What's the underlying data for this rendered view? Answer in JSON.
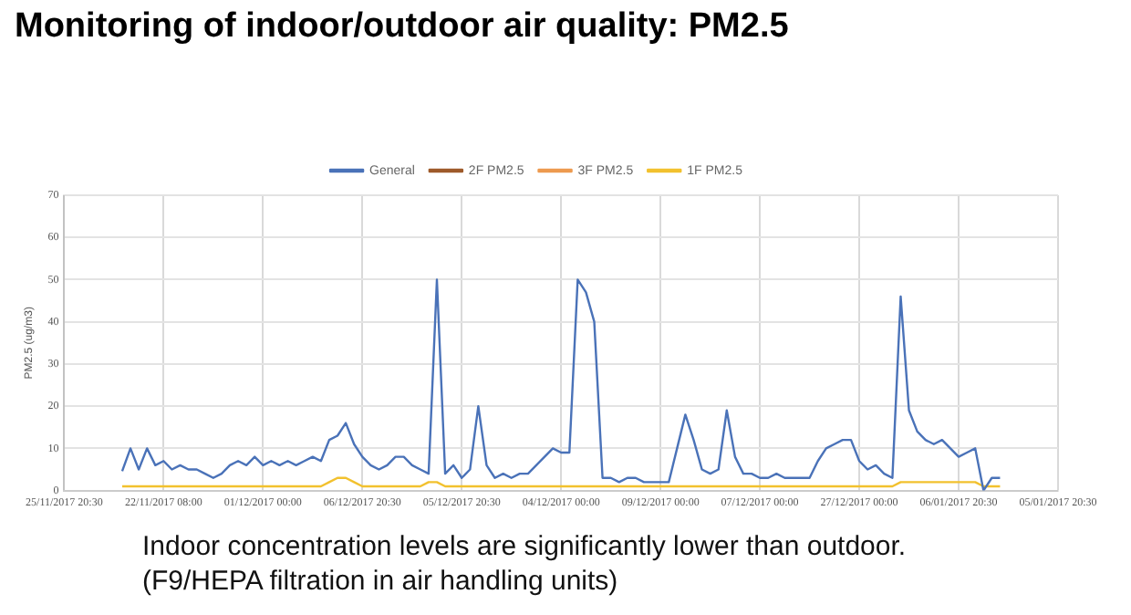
{
  "chart_data": {
    "type": "line",
    "title": "Monitoring of indoor/outdoor air quality: PM2.5",
    "ylabel": "PM2.5 (ug/m3)",
    "categories": [
      "25/11/2017 20:30",
      null,
      null,
      null,
      null,
      null,
      null,
      null,
      null,
      null,
      null,
      null,
      "22/11/2017 08:00",
      null,
      null,
      null,
      null,
      null,
      null,
      null,
      null,
      null,
      null,
      null,
      "01/12/2017 00:00",
      null,
      null,
      null,
      null,
      null,
      null,
      null,
      null,
      null,
      null,
      null,
      "06/12/2017 20:30",
      null,
      null,
      null,
      null,
      null,
      null,
      null,
      null,
      null,
      null,
      null,
      "05/12/2017 20:30",
      null,
      null,
      null,
      null,
      null,
      null,
      null,
      null,
      null,
      null,
      null,
      "04/12/2017 00:00",
      null,
      null,
      null,
      null,
      null,
      null,
      null,
      null,
      null,
      null,
      null,
      "09/12/2017 00:00",
      null,
      null,
      null,
      null,
      null,
      null,
      null,
      null,
      null,
      null,
      null,
      "07/12/2017 00:00",
      null,
      null,
      null,
      null,
      null,
      null,
      null,
      null,
      null,
      null,
      null,
      "27/12/2017 00:00",
      null,
      null,
      null,
      null,
      null,
      null,
      null,
      null,
      null,
      null,
      null,
      "06/01/2017 20:30",
      null,
      null,
      null,
      null,
      null,
      null,
      null,
      null,
      null,
      null,
      null,
      "05/01/2017 20:30"
    ],
    "series": [
      {
        "name": "General",
        "color": "#4a72b8",
        "values": [
          null,
          null,
          null,
          null,
          null,
          null,
          null,
          4.6,
          10,
          5,
          10,
          6,
          7,
          5,
          6,
          5,
          5,
          4,
          3,
          4,
          6,
          7,
          6,
          8,
          6,
          7,
          6,
          7,
          6,
          7,
          8,
          7,
          12,
          13,
          16,
          11,
          8,
          6,
          5,
          6,
          8,
          8,
          6,
          5,
          4,
          50,
          4,
          6,
          3,
          5,
          20,
          6,
          3,
          4,
          3,
          4,
          4,
          6,
          8,
          10,
          9,
          9,
          50,
          47,
          40,
          3,
          3,
          2,
          3,
          3,
          2,
          2,
          2,
          2,
          10,
          18,
          12,
          5,
          4,
          5,
          19,
          8,
          4,
          4,
          3,
          3,
          4,
          3,
          3,
          3,
          3,
          7,
          10,
          11,
          12,
          12,
          7,
          5,
          6,
          4,
          3,
          46,
          19,
          14,
          12,
          11,
          12,
          10,
          8,
          9,
          10,
          0,
          3,
          3,
          null,
          null,
          null,
          null,
          null,
          null,
          null
        ]
      },
      {
        "name": "2F PM2.5",
        "color": "#9e5a2a",
        "values": [
          null,
          null,
          null,
          null,
          null,
          null,
          null,
          null,
          null,
          null,
          null,
          null,
          null,
          null,
          null,
          null,
          null,
          null,
          null,
          null,
          null,
          null,
          null,
          null,
          null,
          null,
          null,
          null,
          null,
          null,
          null,
          null,
          null,
          null,
          null,
          null,
          null,
          null,
          null,
          null,
          null,
          null,
          null,
          null,
          null,
          null,
          null,
          null,
          null,
          null,
          null,
          null,
          null,
          null,
          null,
          null,
          null,
          null,
          null,
          null,
          null,
          null,
          null,
          null,
          null,
          null,
          null,
          null,
          null,
          null,
          null,
          null,
          null,
          null,
          null,
          null,
          null,
          null,
          null,
          null,
          null,
          null,
          null,
          null,
          null,
          null,
          null,
          null,
          null,
          null,
          null,
          null,
          null,
          null,
          null,
          null,
          null,
          null,
          null,
          null,
          null,
          null,
          null,
          null,
          null,
          null,
          null,
          null,
          null,
          null,
          null,
          null,
          null,
          null,
          null,
          null,
          null,
          null,
          null,
          null,
          null
        ]
      },
      {
        "name": "3F PM2.5",
        "color": "#ed9a4f",
        "values": [
          null,
          null,
          null,
          null,
          null,
          null,
          null,
          null,
          null,
          null,
          null,
          null,
          null,
          null,
          null,
          null,
          null,
          null,
          null,
          null,
          null,
          null,
          null,
          null,
          null,
          null,
          null,
          null,
          null,
          null,
          null,
          null,
          null,
          null,
          null,
          null,
          null,
          null,
          null,
          null,
          null,
          null,
          null,
          null,
          null,
          null,
          null,
          null,
          null,
          null,
          null,
          null,
          null,
          null,
          null,
          null,
          null,
          null,
          null,
          null,
          null,
          null,
          null,
          null,
          null,
          null,
          null,
          null,
          null,
          null,
          null,
          null,
          null,
          null,
          null,
          null,
          null,
          null,
          null,
          null,
          null,
          null,
          null,
          null,
          null,
          null,
          null,
          null,
          null,
          null,
          null,
          null,
          null,
          null,
          null,
          null,
          null,
          null,
          null,
          null,
          null,
          null,
          null,
          null,
          null,
          null,
          null,
          null,
          null,
          null,
          null,
          null,
          null,
          null,
          null,
          null,
          null,
          null,
          null,
          null,
          null
        ]
      },
      {
        "name": "1F PM2.5",
        "color": "#f2c12e",
        "values": [
          null,
          null,
          null,
          null,
          null,
          null,
          null,
          1,
          1,
          1,
          1,
          1,
          1,
          1,
          1,
          1,
          1,
          1,
          1,
          1,
          1,
          1,
          1,
          1,
          1,
          1,
          1,
          1,
          1,
          1,
          1,
          1,
          2,
          3,
          3,
          2,
          1,
          1,
          1,
          1,
          1,
          1,
          1,
          1,
          2,
          2,
          1,
          1,
          1,
          1,
          1,
          1,
          1,
          1,
          1,
          1,
          1,
          1,
          1,
          1,
          1,
          1,
          1,
          1,
          1,
          1,
          1,
          1,
          1,
          1,
          1,
          1,
          1,
          1,
          1,
          1,
          1,
          1,
          1,
          1,
          1,
          1,
          1,
          1,
          1,
          1,
          1,
          1,
          1,
          1,
          1,
          1,
          1,
          1,
          1,
          1,
          1,
          1,
          1,
          1,
          1,
          2,
          2,
          2,
          2,
          2,
          2,
          2,
          2,
          2,
          2,
          1,
          1,
          1,
          null,
          null,
          null,
          null,
          null,
          null,
          null
        ]
      }
    ],
    "ylim": [
      0,
      70
    ],
    "yticks": [
      0,
      10,
      20,
      30,
      40,
      50,
      60,
      70
    ],
    "grid": true,
    "legend": "top",
    "marker": "none",
    "line_style": "solid",
    "annotations": [
      "Indoor concentration levels are significantly lower than outdoor.",
      "(F9/HEPA filtration in air handling units)"
    ]
  }
}
